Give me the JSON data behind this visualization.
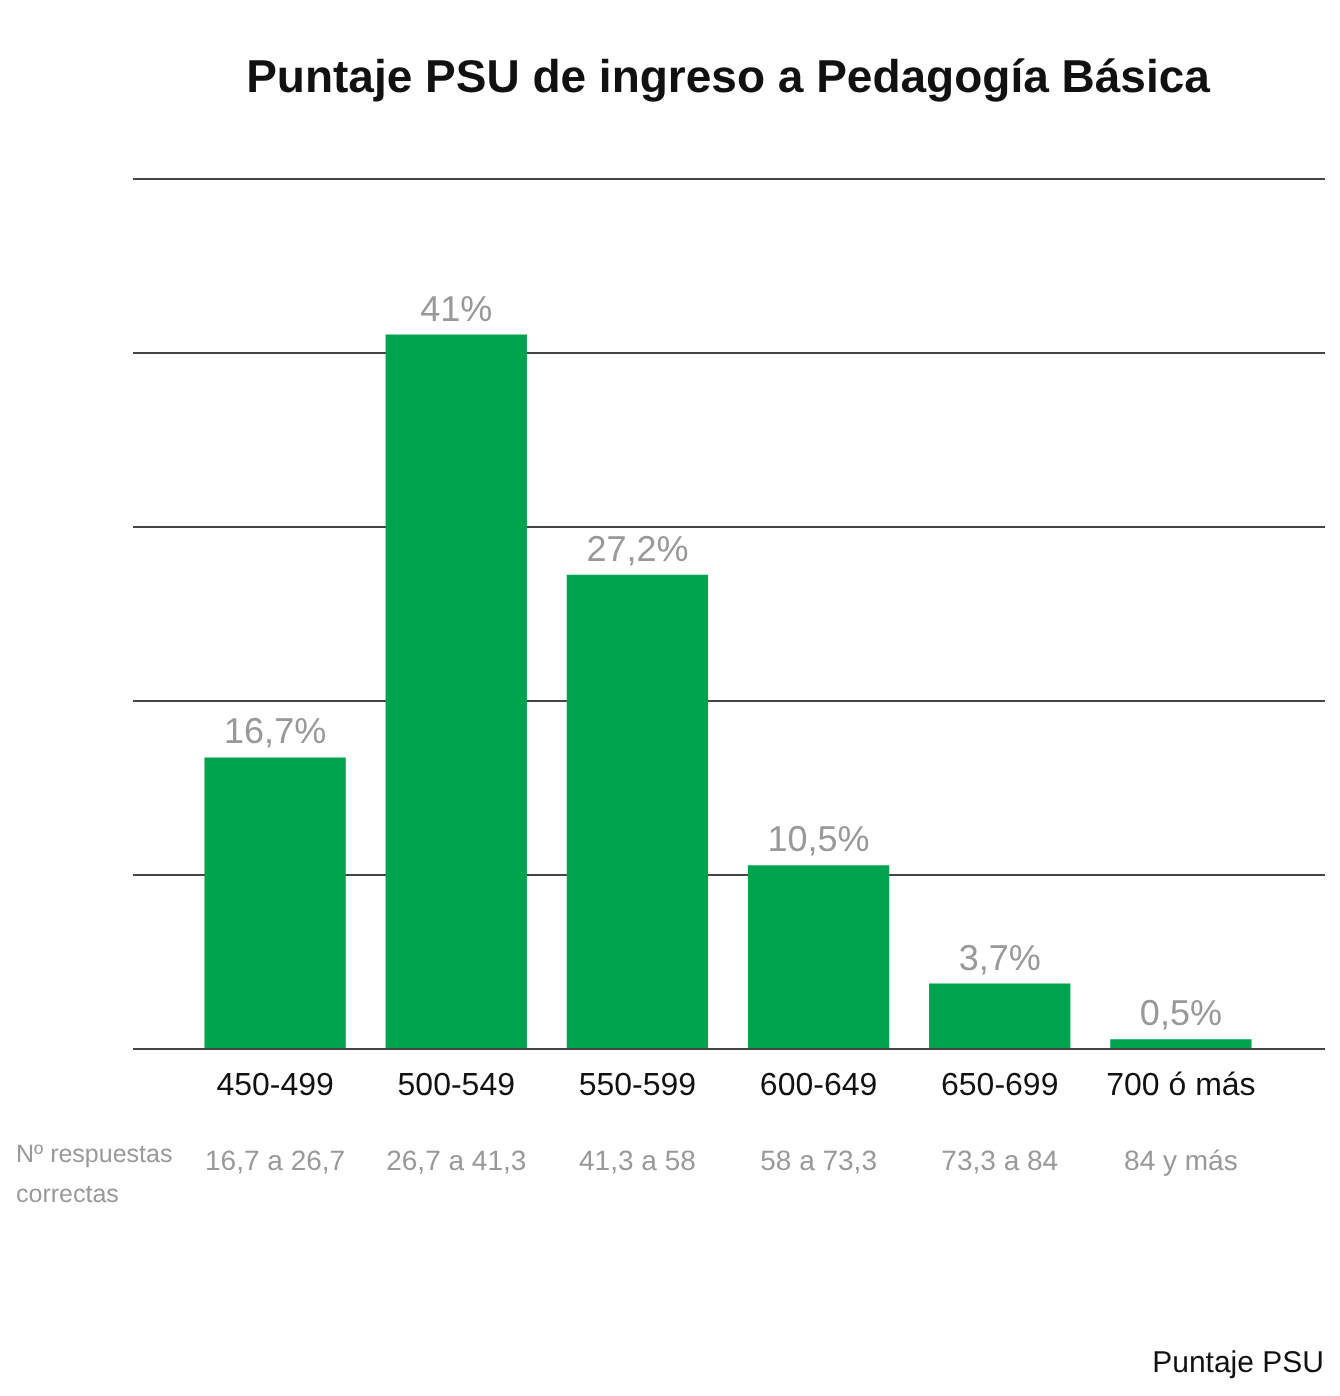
{
  "chart_data": {
    "type": "bar",
    "title": "Puntaje PSU de ingreso a Pedagogía Básica",
    "categories": [
      "450-499",
      "500-549",
      "550-599",
      "600-649",
      "650-699",
      "700 ó más"
    ],
    "values": [
      16.7,
      41,
      27.2,
      10.5,
      3.7,
      0.5
    ],
    "value_labels": [
      "16,7%",
      "41%",
      "27,2%",
      "10,5%",
      "3,7%",
      "0,5%"
    ],
    "color": "#00a34d",
    "ylim": [
      0,
      50
    ],
    "yticks": [
      {
        "value": 0,
        "label": null
      },
      {
        "value": 10,
        "label": null
      },
      {
        "value": 20,
        "label": null
      },
      {
        "value": 30,
        "label": null
      },
      {
        "value": 40,
        "label": null
      },
      {
        "value": 50,
        "label": null
      }
    ],
    "grid": "y",
    "annotations": [
      "Nº respuestas correctas",
      "16,7 a 26,7",
      "26,7 a 41,3",
      "41,3 a 58",
      "58 a 73,3",
      "73,3 a 84",
      "84 y más",
      "Puntaje PSU"
    ]
  }
}
